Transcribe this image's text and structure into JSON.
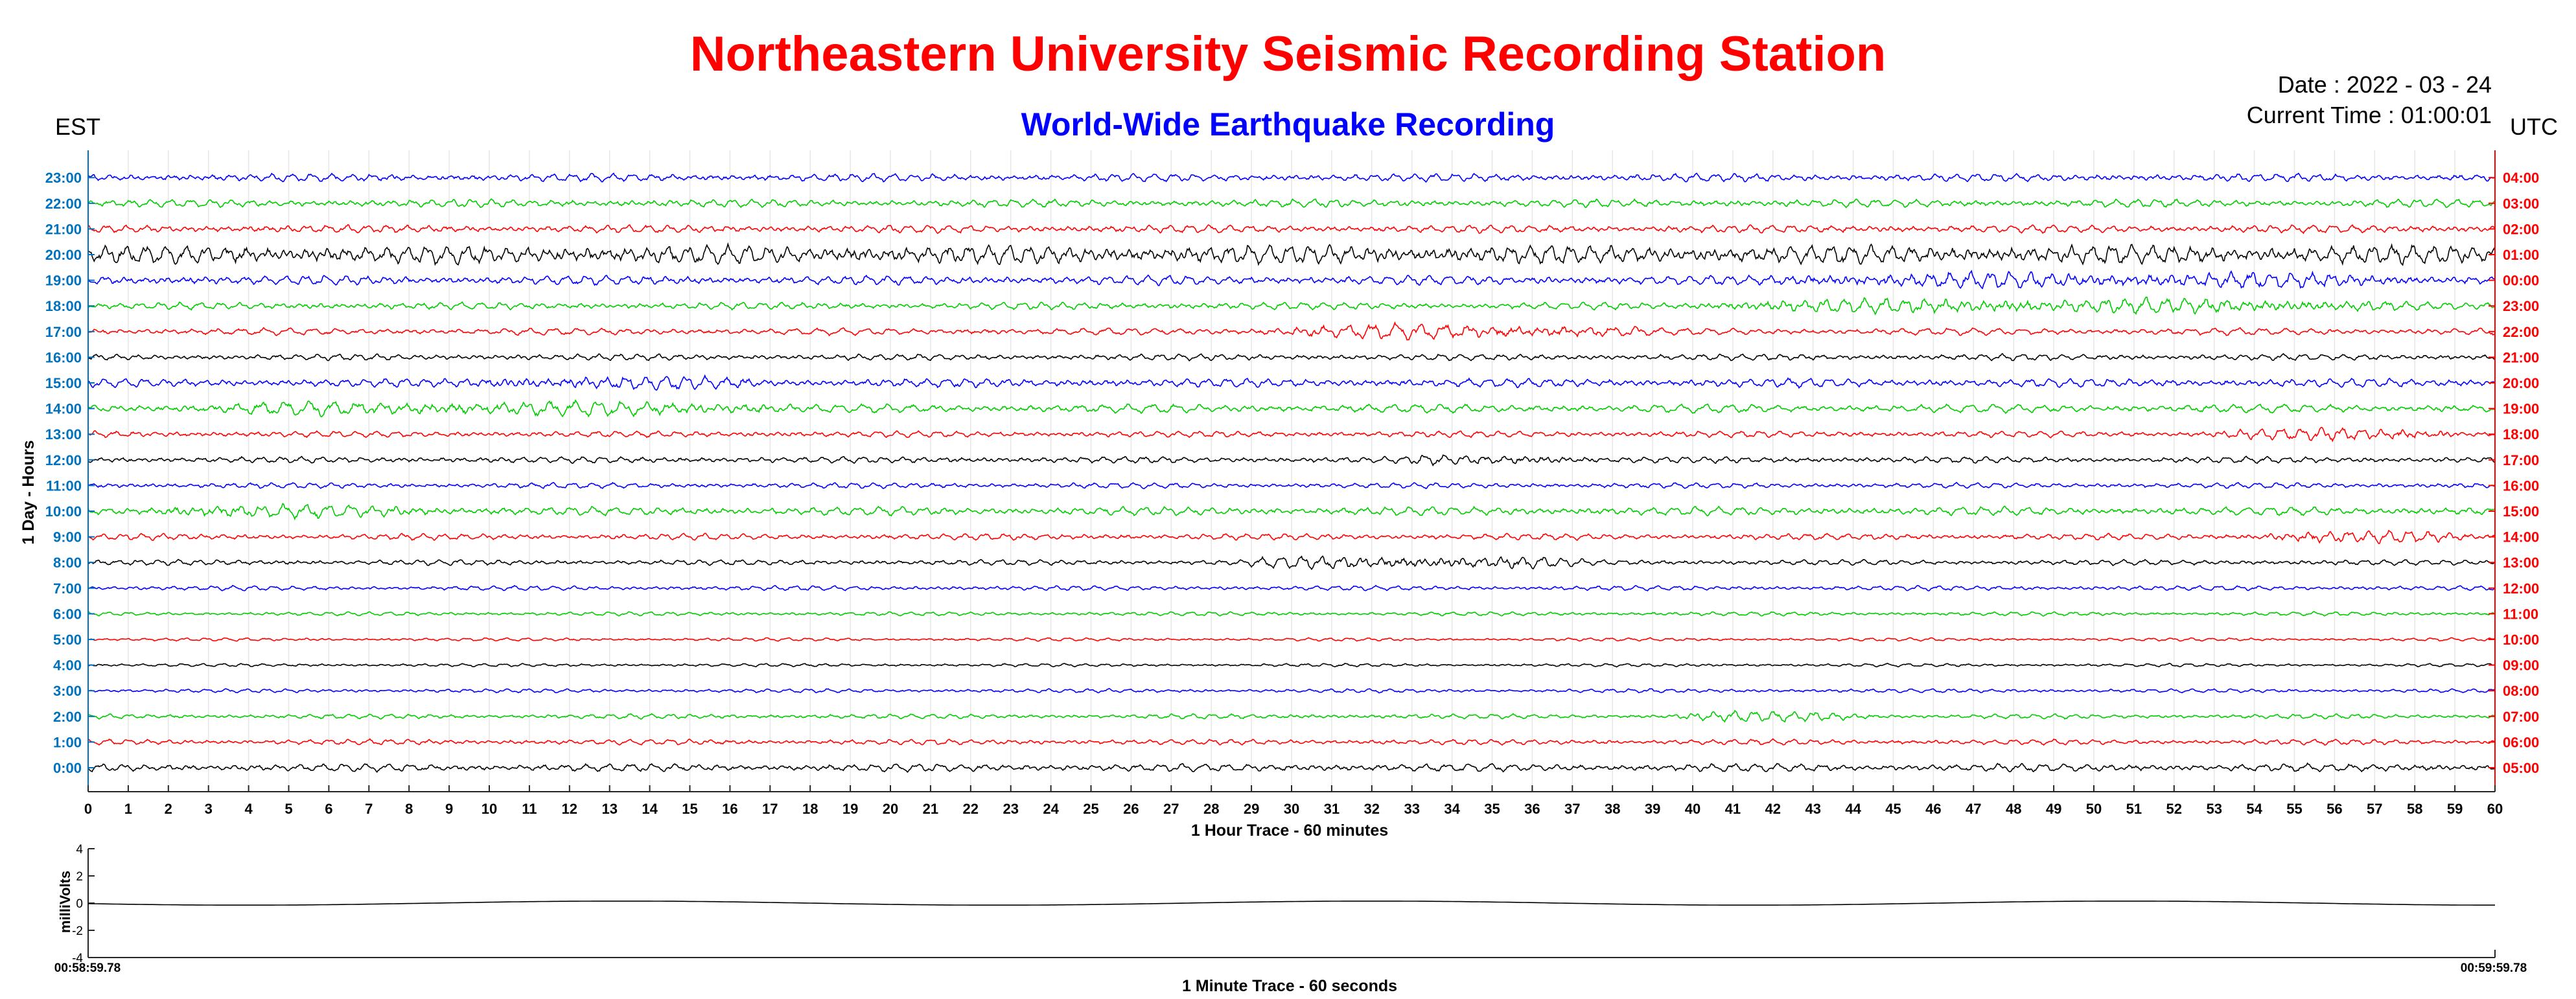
{
  "header": {
    "title": "Northeastern University Seismic Recording Station",
    "subtitle": "World-Wide Earthquake Recording",
    "date_text": "Date : 2022 - 03 - 24",
    "current_time_text": "Current Time : 01:00:01",
    "left_timezone": "EST",
    "right_timezone": "UTC"
  },
  "colors": {
    "title": "#ff0000",
    "subtitle": "#0000ff",
    "left_axis": "#0072bd",
    "right_axis": "#ff0000",
    "trace_cycle": [
      "#000000",
      "#ff0000",
      "#00cc00",
      "#0000ff"
    ]
  },
  "chart_data": [
    {
      "type": "line",
      "name": "helicorder-24h",
      "xlabel": "1 Hour Trace - 60 minutes",
      "ylabel": "1 Day - Hours",
      "xlim": [
        0,
        60
      ],
      "x_ticks": [
        "0",
        "1",
        "2",
        "3",
        "4",
        "5",
        "6",
        "7",
        "8",
        "9",
        "10",
        "11",
        "12",
        "13",
        "14",
        "15",
        "16",
        "17",
        "18",
        "19",
        "20",
        "21",
        "22",
        "23",
        "24",
        "25",
        "26",
        "27",
        "28",
        "29",
        "30",
        "31",
        "32",
        "33",
        "34",
        "35",
        "36",
        "37",
        "38",
        "39",
        "40",
        "41",
        "42",
        "43",
        "44",
        "45",
        "46",
        "47",
        "48",
        "49",
        "50",
        "51",
        "52",
        "53",
        "54",
        "55",
        "56",
        "57",
        "58",
        "59",
        "60"
      ],
      "left_tick_labels": [
        "0:00",
        "1:00",
        "2:00",
        "3:00",
        "4:00",
        "5:00",
        "6:00",
        "7:00",
        "8:00",
        "9:00",
        "10:00",
        "11:00",
        "12:00",
        "13:00",
        "14:00",
        "15:00",
        "16:00",
        "17:00",
        "18:00",
        "19:00",
        "20:00",
        "21:00",
        "22:00",
        "23:00"
      ],
      "right_tick_labels": [
        "05:00",
        "06:00",
        "07:00",
        "08:00",
        "09:00",
        "10:00",
        "11:00",
        "12:00",
        "13:00",
        "14:00",
        "15:00",
        "16:00",
        "17:00",
        "18:00",
        "19:00",
        "20:00",
        "21:00",
        "22:00",
        "23:00",
        "00:00",
        "01:00",
        "02:00",
        "03:00",
        "04:00"
      ],
      "trace_color_order": [
        "black",
        "red",
        "green",
        "blue"
      ],
      "activity": [
        {
          "row": "0:00",
          "amplitude": 0.5,
          "period_min": 0.55
        },
        {
          "row": "1:00",
          "amplitude": 0.35,
          "period_min": 0.5
        },
        {
          "row": "2:00",
          "amplitude": 0.3,
          "period_min": 0.5,
          "burst": {
            "from": 39,
            "to": 45,
            "amplitude": 0.7
          }
        },
        {
          "row": "3:00",
          "amplitude": 0.25,
          "period_min": 0.5
        },
        {
          "row": "4:00",
          "amplitude": 0.2,
          "period_min": 0.5
        },
        {
          "row": "5:00",
          "amplitude": 0.2,
          "period_min": 0.5
        },
        {
          "row": "6:00",
          "amplitude": 0.25,
          "period_min": 0.5
        },
        {
          "row": "7:00",
          "amplitude": 0.3,
          "period_min": 0.5
        },
        {
          "row": "8:00",
          "amplitude": 0.35,
          "period_min": 0.5,
          "burst": {
            "from": 28,
            "to": 38,
            "amplitude": 0.9
          }
        },
        {
          "row": "9:00",
          "amplitude": 0.4,
          "period_min": 0.5,
          "burst": {
            "from": 53,
            "to": 60,
            "amplitude": 0.8
          }
        },
        {
          "row": "10:00",
          "amplitude": 0.55,
          "period_min": 0.55,
          "burst": {
            "from": 0,
            "to": 10,
            "amplitude": 0.9
          }
        },
        {
          "row": "11:00",
          "amplitude": 0.35,
          "period_min": 0.5
        },
        {
          "row": "12:00",
          "amplitude": 0.4,
          "period_min": 0.5,
          "burst": {
            "from": 32,
            "to": 38,
            "amplitude": 0.7
          }
        },
        {
          "row": "13:00",
          "amplitude": 0.4,
          "period_min": 0.5,
          "burst": {
            "from": 52,
            "to": 60,
            "amplitude": 0.8
          }
        },
        {
          "row": "14:00",
          "amplitude": 0.55,
          "period_min": 0.6,
          "burst": {
            "from": 0,
            "to": 20,
            "amplitude": 1.0
          }
        },
        {
          "row": "15:00",
          "amplitude": 0.55,
          "period_min": 0.5,
          "burst": {
            "from": 8,
            "to": 18,
            "amplitude": 0.9
          }
        },
        {
          "row": "16:00",
          "amplitude": 0.4,
          "period_min": 0.5
        },
        {
          "row": "17:00",
          "amplitude": 0.45,
          "period_min": 0.6,
          "burst": {
            "from": 28,
            "to": 40,
            "amplitude": 1.0
          }
        },
        {
          "row": "18:00",
          "amplitude": 0.45,
          "period_min": 0.5,
          "burst": {
            "from": 38,
            "to": 60,
            "amplitude": 1.0
          }
        },
        {
          "row": "19:00",
          "amplitude": 0.6,
          "period_min": 0.5,
          "burst": {
            "from": 40,
            "to": 60,
            "amplitude": 1.1
          }
        },
        {
          "row": "20:00",
          "amplitude": 1.2,
          "period_min": 0.5
        },
        {
          "row": "21:00",
          "amplitude": 0.5,
          "period_min": 0.5
        },
        {
          "row": "22:00",
          "amplitude": 0.5,
          "period_min": 0.5
        },
        {
          "row": "23:00",
          "amplitude": 0.5,
          "period_min": 0.5
        }
      ]
    },
    {
      "type": "line",
      "name": "one-minute-trace",
      "xlabel": "1 Minute Trace  - 60 seconds",
      "ylabel": "milliVolts",
      "ylim": [
        -4,
        4
      ],
      "y_ticks": [
        "4",
        "2",
        "0",
        "-2",
        "-4"
      ],
      "x_start_label": "00:58:59.78",
      "x_end_label": "00:59:59.78",
      "wave_amplitude_mv": 0.15,
      "wave_cycles": 3.2
    }
  ]
}
